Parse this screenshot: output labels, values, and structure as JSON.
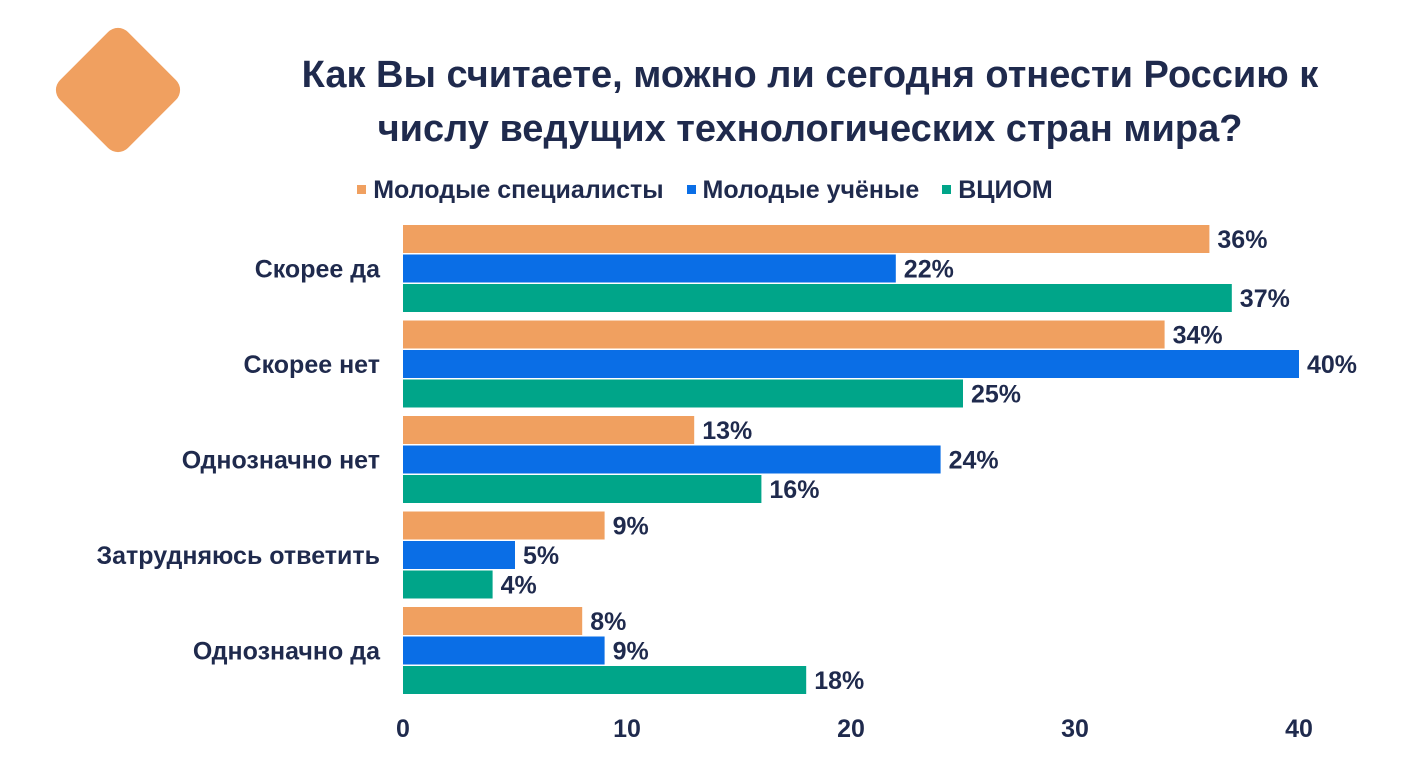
{
  "title_lines": [
    "Как Вы считаете, можно ли сегодня отнести Россию к",
    "числу ведущих технологических стран мира?"
  ],
  "colors": {
    "Молодые специалисты": "#f0a060",
    "Молодые учёные": "#0a6ee6",
    "ВЦИОМ": "#00a589",
    "text": "#1f2a4d"
  },
  "chart_data": {
    "type": "bar",
    "orientation": "horizontal",
    "categories": [
      "Скорее да",
      "Скорее нет",
      "Однозначно нет",
      "Затрудняюсь ответить",
      "Однозначно да"
    ],
    "series": [
      {
        "name": "Молодые специалисты",
        "values": [
          36,
          34,
          13,
          9,
          8
        ]
      },
      {
        "name": "Молодые учёные",
        "values": [
          22,
          40,
          24,
          5,
          9
        ]
      },
      {
        "name": "ВЦИОМ",
        "values": [
          37,
          25,
          16,
          4,
          18
        ]
      }
    ],
    "value_suffix": "%",
    "xlim": [
      0,
      40
    ],
    "xticks": [
      0,
      10,
      20,
      30,
      40
    ],
    "grid": false,
    "legend_position": "top"
  }
}
